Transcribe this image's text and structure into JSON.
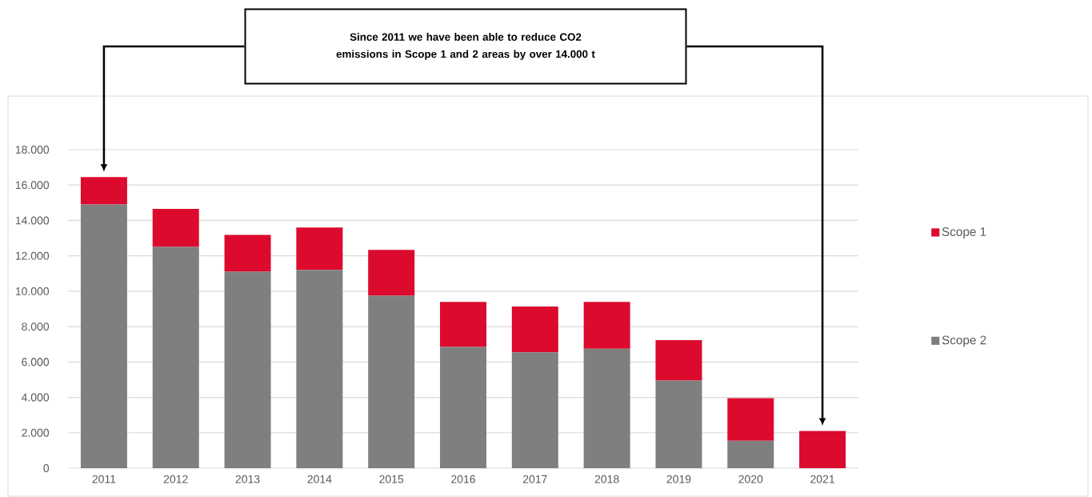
{
  "chart_data": {
    "type": "bar",
    "stacked": true,
    "categories": [
      "2011",
      "2012",
      "2013",
      "2014",
      "2015",
      "2016",
      "2017",
      "2018",
      "2019",
      "2020",
      "2021"
    ],
    "series": [
      {
        "name": "Scope 2",
        "color": "#7f7f7f",
        "values": [
          14900,
          12500,
          11100,
          11200,
          9750,
          6850,
          6550,
          6750,
          4950,
          1550,
          0
        ]
      },
      {
        "name": "Scope 1",
        "color": "#dc0a2d",
        "values": [
          1550,
          2150,
          2080,
          2400,
          2580,
          2550,
          2580,
          2650,
          2280,
          2410,
          2100
        ]
      }
    ],
    "ylim": [
      0,
      18000
    ],
    "yticks": [
      0,
      {
        "value": 2000,
        "label": "2.000"
      },
      {
        "value": 4000,
        "label": "4.000"
      },
      {
        "value": 6000,
        "label": "6.000"
      },
      {
        "value": 8000,
        "label": "8.000"
      },
      {
        "value": 10000,
        "label": "10.000"
      },
      {
        "value": 12000,
        "label": "12.000"
      },
      {
        "value": 14000,
        "label": "14.000"
      },
      {
        "value": 16000,
        "label": "16.000"
      },
      {
        "value": 18000,
        "label": "18.000"
      }
    ],
    "grid": "y",
    "legend": "right",
    "annotations": [
      "Since 2011 we have been able to reduce CO2 emissions in Scope 1 and 2 areas by over 14.000 t"
    ]
  }
}
